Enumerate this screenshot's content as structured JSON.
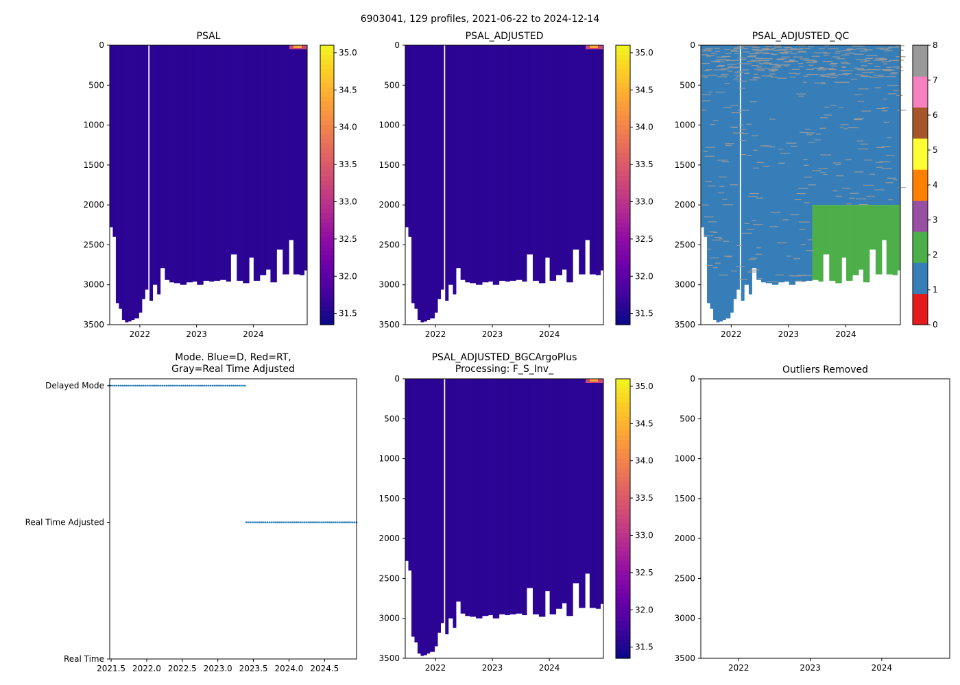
{
  "figure": {
    "suptitle": "6903041, 129 profiles, 2021-06-22 to 2024-12-14"
  },
  "colors": {
    "plasma": [
      "#0d0887",
      "#41049d",
      "#6a00a8",
      "#8f0da4",
      "#b12a90",
      "#cc4778",
      "#e16462",
      "#f2844b",
      "#fca636",
      "#fcce25",
      "#f0f921"
    ],
    "qc": [
      "#e41a1c",
      "#377eb8",
      "#4daf4a",
      "#984ea3",
      "#ff7f00",
      "#ffff33",
      "#a65628",
      "#f781bf",
      "#999999"
    ],
    "profile_fill": "#2d0595",
    "mode_dots": "#1f77b4"
  },
  "chart_data": [
    {
      "id": "psal",
      "type": "heatmap",
      "title": "PSAL",
      "x_ticks": [
        "2022",
        "2023",
        "2024"
      ],
      "xlim": [
        2021.47,
        2024.95
      ],
      "x_tick_values": [
        2022,
        2023,
        2024
      ],
      "ylim": [
        3500,
        0
      ],
      "y_ticks": [
        "0",
        "500",
        "1000",
        "1500",
        "2000",
        "2500",
        "3000",
        "3500"
      ],
      "y_tick_values": [
        0,
        500,
        1000,
        1500,
        2000,
        2500,
        3000,
        3500
      ],
      "colorbar": {
        "ticks": [
          "31.5",
          "32.0",
          "32.5",
          "33.0",
          "33.5",
          "34.0",
          "34.5",
          "35.0"
        ],
        "tick_values": [
          31.5,
          32.0,
          32.5,
          33.0,
          33.5,
          34.0,
          34.5,
          35.0
        ],
        "range": [
          31.35,
          35.1
        ]
      }
    },
    {
      "id": "psal_adj",
      "type": "heatmap",
      "title": "PSAL_ADJUSTED",
      "x_ticks": [
        "2022",
        "2023",
        "2024"
      ],
      "xlim": [
        2021.47,
        2024.95
      ],
      "x_tick_values": [
        2022,
        2023,
        2024
      ],
      "ylim": [
        3500,
        0
      ],
      "y_ticks": [
        "0",
        "500",
        "1000",
        "1500",
        "2000",
        "2500",
        "3000",
        "3500"
      ],
      "y_tick_values": [
        0,
        500,
        1000,
        1500,
        2000,
        2500,
        3000,
        3500
      ],
      "colorbar": {
        "ticks": [
          "31.5",
          "32.0",
          "32.5",
          "33.0",
          "33.5",
          "34.0",
          "34.5",
          "35.0"
        ],
        "tick_values": [
          31.5,
          32.0,
          32.5,
          33.0,
          33.5,
          34.0,
          34.5,
          35.0
        ],
        "range": [
          31.35,
          35.1
        ]
      }
    },
    {
      "id": "psal_qc",
      "type": "heatmap",
      "title": "PSAL_ADJUSTED_QC",
      "x_ticks": [
        "2022",
        "2023",
        "2024"
      ],
      "xlim": [
        2021.47,
        2024.95
      ],
      "x_tick_values": [
        2022,
        2023,
        2024
      ],
      "ylim": [
        3500,
        0
      ],
      "y_ticks": [
        "0",
        "500",
        "1000",
        "1500",
        "2000",
        "2500",
        "3000",
        "3500"
      ],
      "y_tick_values": [
        0,
        500,
        1000,
        1500,
        2000,
        2500,
        3000,
        3500
      ],
      "qc_green_region": {
        "x_start": 2023.4,
        "depth_start": 2000
      },
      "colorbar": {
        "ticks": [
          "0",
          "1",
          "2",
          "3",
          "4",
          "5",
          "6",
          "7",
          "8"
        ],
        "tick_values": [
          0,
          1,
          2,
          3,
          4,
          5,
          6,
          7,
          8
        ],
        "range": [
          0,
          8
        ]
      }
    },
    {
      "id": "mode",
      "type": "scatter",
      "title": "Mode. Blue=D, Red=RT,",
      "title2": "Gray=Real Time Adjusted",
      "x_ticks": [
        "2021.5",
        "2022.0",
        "2022.5",
        "2023.0",
        "2023.5",
        "2024.0",
        "2024.5"
      ],
      "x_tick_values": [
        2021.5,
        2022.0,
        2022.5,
        2023.0,
        2023.5,
        2024.0,
        2024.5
      ],
      "xlim": [
        2021.48,
        2024.95
      ],
      "y_ticks": [
        "Delayed Mode",
        "Real Time Adjusted",
        "Real Time"
      ],
      "y_tick_values": [
        2,
        1,
        0
      ],
      "ylim": [
        0,
        2.05
      ],
      "series": [
        {
          "name": "Delayed Mode",
          "y": 2,
          "x_start": 2021.47,
          "x_end": 2023.38
        },
        {
          "name": "Real Time Adjusted",
          "y": 1,
          "x_start": 2023.4,
          "x_end": 2024.95
        }
      ]
    },
    {
      "id": "psal_bgc",
      "type": "heatmap",
      "title": "PSAL_ADJUSTED_BGCArgoPlus",
      "title2": "Processing: F_S_Inv_",
      "x_ticks": [
        "2022",
        "2023",
        "2024"
      ],
      "xlim": [
        2021.47,
        2024.95
      ],
      "x_tick_values": [
        2022,
        2023,
        2024
      ],
      "ylim": [
        3500,
        0
      ],
      "y_ticks": [
        "0",
        "500",
        "1000",
        "1500",
        "2000",
        "2500",
        "3000",
        "3500"
      ],
      "y_tick_values": [
        0,
        500,
        1000,
        1500,
        2000,
        2500,
        3000,
        3500
      ],
      "colorbar": {
        "ticks": [
          "31.5",
          "32.0",
          "32.5",
          "33.0",
          "33.5",
          "34.0",
          "34.5",
          "35.0"
        ],
        "tick_values": [
          31.5,
          32.0,
          32.5,
          33.0,
          33.5,
          34.0,
          34.5,
          35.0
        ],
        "range": [
          31.35,
          35.1
        ]
      }
    },
    {
      "id": "outliers",
      "type": "scatter",
      "title": "Outliers Removed",
      "x_ticks": [
        "2022",
        "2023",
        "2024"
      ],
      "xlim": [
        2021.47,
        2024.95
      ],
      "x_tick_values": [
        2022,
        2023,
        2024
      ],
      "ylim": [
        3500,
        0
      ],
      "y_ticks": [
        "0",
        "500",
        "1000",
        "1500",
        "2000",
        "2500",
        "3000",
        "3500"
      ],
      "y_tick_values": [
        0,
        500,
        1000,
        1500,
        2000,
        2500,
        3000,
        3500
      ],
      "series": []
    }
  ],
  "profile_bottoms": [
    {
      "x": 2021.47,
      "depth": 2280
    },
    {
      "x": 2021.52,
      "depth": 2400
    },
    {
      "x": 2021.56,
      "depth": 3230
    },
    {
      "x": 2021.62,
      "depth": 3300
    },
    {
      "x": 2021.66,
      "depth": 3440
    },
    {
      "x": 2021.72,
      "depth": 3470
    },
    {
      "x": 2021.78,
      "depth": 3460
    },
    {
      "x": 2021.84,
      "depth": 3440
    },
    {
      "x": 2021.9,
      "depth": 3420
    },
    {
      "x": 2021.96,
      "depth": 3350
    },
    {
      "x": 2022.02,
      "depth": 3180
    },
    {
      "x": 2022.08,
      "depth": 3060
    },
    {
      "x": 2022.13,
      "depth": 3200
    },
    {
      "x": 2022.2,
      "depth": 3000
    },
    {
      "x": 2022.28,
      "depth": 3120
    },
    {
      "x": 2022.36,
      "depth": 2790
    },
    {
      "x": 2022.42,
      "depth": 2940
    },
    {
      "x": 2022.5,
      "depth": 2970
    },
    {
      "x": 2022.6,
      "depth": 2980
    },
    {
      "x": 2022.7,
      "depth": 3000
    },
    {
      "x": 2022.8,
      "depth": 2970
    },
    {
      "x": 2022.9,
      "depth": 2960
    },
    {
      "x": 2023.0,
      "depth": 3000
    },
    {
      "x": 2023.1,
      "depth": 2950
    },
    {
      "x": 2023.2,
      "depth": 2960
    },
    {
      "x": 2023.3,
      "depth": 2950
    },
    {
      "x": 2023.4,
      "depth": 2940
    },
    {
      "x": 2023.5,
      "depth": 2960
    },
    {
      "x": 2023.6,
      "depth": 2620
    },
    {
      "x": 2023.7,
      "depth": 2950
    },
    {
      "x": 2023.8,
      "depth": 2980
    },
    {
      "x": 2023.9,
      "depth": 2660
    },
    {
      "x": 2024.0,
      "depth": 2950
    },
    {
      "x": 2024.1,
      "depth": 2880
    },
    {
      "x": 2024.2,
      "depth": 2810
    },
    {
      "x": 2024.3,
      "depth": 2970
    },
    {
      "x": 2024.4,
      "depth": 2560
    },
    {
      "x": 2024.5,
      "depth": 2870
    },
    {
      "x": 2024.6,
      "depth": 2440
    },
    {
      "x": 2024.7,
      "depth": 2870
    },
    {
      "x": 2024.8,
      "depth": 2880
    },
    {
      "x": 2024.87,
      "depth": 2820
    },
    {
      "x": 2024.95,
      "depth": 2970
    }
  ],
  "data_gap_x": 2022.15
}
